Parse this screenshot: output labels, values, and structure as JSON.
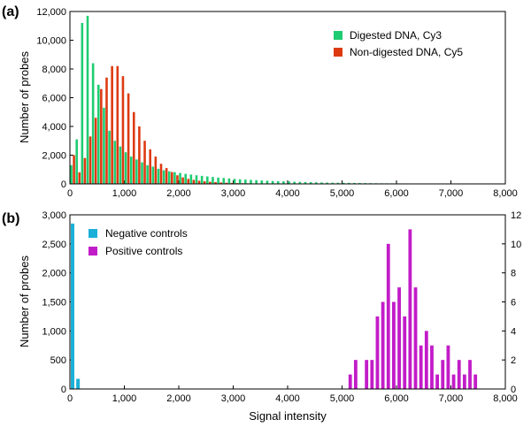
{
  "colors": {
    "cy3": "#1fcc72",
    "cy5": "#dd3a12",
    "negative": "#1ab0d8",
    "positive": "#c21cc8",
    "axis": "#000000"
  },
  "chart_data": [
    {
      "panel": "(a)",
      "type": "bar",
      "ylabel": "Number of probes",
      "xlabel": "",
      "xlim": [
        0,
        8000
      ],
      "ylim": [
        0,
        12000
      ],
      "xticks": [
        "0",
        "1,000",
        "2,000",
        "3,000",
        "4,000",
        "5,000",
        "6,000",
        "7,000",
        "8,000"
      ],
      "xtick_values": [
        0,
        1000,
        2000,
        3000,
        4000,
        5000,
        6000,
        7000,
        8000
      ],
      "yticks": [
        "0",
        "2,000",
        "4,000",
        "6,000",
        "8,000",
        "10,000",
        "12,000"
      ],
      "ytick_values": [
        0,
        2000,
        4000,
        6000,
        8000,
        10000,
        12000
      ],
      "legend_position": "top-right",
      "bin_width": 100,
      "series": [
        {
          "name": "Digested DNA, Cy3",
          "x": [
            0,
            100,
            200,
            300,
            400,
            500,
            600,
            700,
            800,
            900,
            1000,
            1100,
            1200,
            1300,
            1400,
            1500,
            1600,
            1700,
            1800,
            1900,
            2000,
            2100,
            2200,
            2300,
            2400,
            2500,
            2600,
            2700,
            2800,
            2900,
            3000,
            3100,
            3200,
            3300,
            3400,
            3500,
            3600,
            3700,
            3800,
            3900,
            4000,
            4100,
            4200,
            4300,
            4400,
            4500,
            4600,
            4700,
            4800,
            4900,
            5000,
            5100,
            5200,
            5300,
            5400,
            5500,
            5600,
            5700,
            5800,
            5900,
            6000,
            6100,
            6200,
            6300,
            6400,
            6500,
            6600,
            6700,
            6800,
            6900
          ],
          "values": [
            1300,
            3100,
            11200,
            11700,
            8400,
            6900,
            5300,
            3700,
            3000,
            2600,
            2200,
            1900,
            1700,
            1500,
            1300,
            1200,
            1050,
            950,
            880,
            820,
            760,
            700,
            650,
            600,
            560,
            520,
            480,
            440,
            410,
            380,
            350,
            320,
            300,
            280,
            260,
            240,
            220,
            200,
            190,
            180,
            170,
            150,
            140,
            130,
            120,
            110,
            100,
            90,
            85,
            80,
            75,
            70,
            65,
            60,
            55,
            50,
            45,
            40,
            38,
            36,
            34,
            32,
            30,
            28,
            26,
            24,
            22,
            20,
            18,
            16
          ]
        },
        {
          "name": "Non-digested DNA, Cy5",
          "x": [
            0,
            100,
            200,
            300,
            400,
            500,
            600,
            700,
            800,
            900,
            1000,
            1100,
            1200,
            1300,
            1400,
            1500,
            1600,
            1700,
            1800,
            1900,
            2000,
            2100,
            2200,
            2300,
            2400,
            2500,
            2600,
            2700,
            2800,
            2900,
            3000,
            3100,
            3200,
            3300,
            3400,
            3500,
            3600,
            3700,
            3800,
            3900,
            4000,
            4100,
            4200,
            4300,
            4400,
            4500,
            4600,
            4700,
            4800,
            4900,
            5000
          ],
          "values": [
            2000,
            800,
            1800,
            3300,
            4600,
            6600,
            7400,
            8200,
            8200,
            7500,
            6300,
            5000,
            4000,
            3000,
            2400,
            1900,
            1400,
            1100,
            820,
            600,
            450,
            350,
            280,
            220,
            180,
            150,
            120,
            100,
            80,
            65,
            55,
            48,
            40,
            34,
            30,
            26,
            22,
            19,
            16,
            14,
            12,
            10,
            9,
            8,
            7,
            6,
            5,
            4,
            3,
            2,
            2
          ]
        }
      ]
    },
    {
      "panel": "(b)",
      "type": "bar",
      "ylabel": "Number of probes",
      "xlabel": "Signal intensity",
      "xlim": [
        0,
        8000
      ],
      "ylim": [
        0,
        3000
      ],
      "ylim_right": [
        0,
        12
      ],
      "xticks": [
        "0",
        "1,000",
        "2,000",
        "3,000",
        "4,000",
        "5,000",
        "6,000",
        "7,000",
        "8,000"
      ],
      "xtick_values": [
        0,
        1000,
        2000,
        3000,
        4000,
        5000,
        6000,
        7000,
        8000
      ],
      "yticks": [
        "0",
        "500",
        "1,000",
        "1,500",
        "2,000",
        "2,500",
        "3,000"
      ],
      "ytick_values": [
        0,
        500,
        1000,
        1500,
        2000,
        2500,
        3000
      ],
      "yticks_right": [
        "0",
        "2",
        "4",
        "6",
        "8",
        "10",
        "12"
      ],
      "ytick_values_right": [
        0,
        2,
        4,
        6,
        8,
        10,
        12
      ],
      "legend_position": "top-left",
      "bin_width": 100,
      "series": [
        {
          "name": "Negative controls",
          "axis": "left",
          "x": [
            0,
            100
          ],
          "values": [
            2850,
            175
          ]
        },
        {
          "name": "Positive controls",
          "axis": "right",
          "x": [
            5150,
            5250,
            5450,
            5550,
            5650,
            5750,
            5850,
            5950,
            6050,
            6150,
            6250,
            6350,
            6450,
            6550,
            6650,
            6750,
            6850,
            6950,
            7050,
            7150,
            7250,
            7350,
            7450
          ],
          "values": [
            1,
            2,
            2,
            2,
            5,
            6,
            10,
            6,
            7,
            5,
            11,
            7,
            3,
            4,
            3,
            1,
            2,
            3,
            1,
            2,
            1,
            2,
            1
          ]
        }
      ]
    }
  ]
}
